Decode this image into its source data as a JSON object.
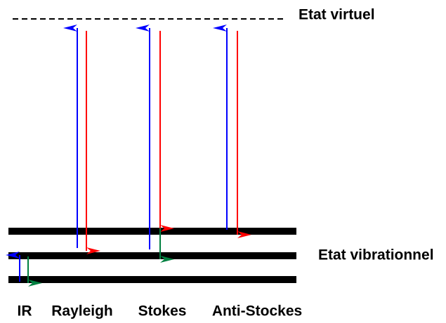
{
  "levels": {
    "virtual": "Etat virtuel",
    "vibrational": "Etat vibrationnel"
  },
  "transitions": [
    "IR",
    "Rayleigh",
    "Stokes",
    "Anti-Stockes"
  ]
}
